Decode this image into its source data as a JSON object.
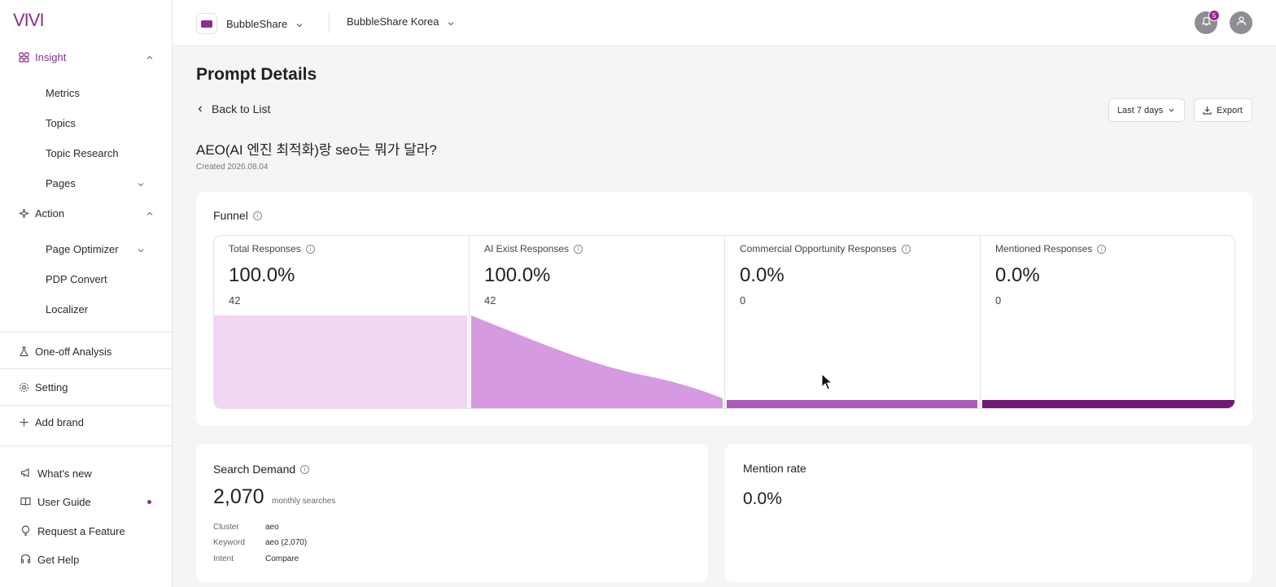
{
  "sidebar": {
    "logo": "VIVI",
    "insight": {
      "label": "Insight",
      "items": [
        "Metrics",
        "Topics",
        "Topic Research",
        "Pages"
      ]
    },
    "action": {
      "label": "Action",
      "items": [
        "Page Optimizer",
        "PDP Convert",
        "Localizer"
      ]
    },
    "one_off": "One-off Analysis",
    "setting": "Setting",
    "add_brand": "Add brand",
    "footer": [
      "What's new",
      "User Guide",
      "Request a Feature",
      "Get Help"
    ]
  },
  "header": {
    "brand": "BubbleShare",
    "region": "BubbleShare Korea",
    "notification_count": "5"
  },
  "main": {
    "page_title": "Prompt Details",
    "back_label": "Back to List",
    "range_label": "Last 7 days",
    "export_label": "Export",
    "prompt_title": "AEO(AI 엔진 최적화)랑 seo는 뭐가 달라?",
    "created": "Created 2026.08.04"
  },
  "funnel": {
    "title": "Funnel",
    "stages": [
      {
        "label": "Total Responses",
        "percent": "100.0%",
        "count": "42",
        "value": 100
      },
      {
        "label": "AI Exist Responses",
        "percent": "100.0%",
        "count": "42",
        "value": 100
      },
      {
        "label": "Commercial Opportunity Responses",
        "percent": "0.0%",
        "count": "0",
        "value": 0
      },
      {
        "label": "Mentioned Responses",
        "percent": "0.0%",
        "count": "0",
        "value": 0
      }
    ],
    "colors": [
      "#f1d5f3",
      "#d69ae0",
      "#ab5cb8",
      "#6e1a74"
    ]
  },
  "search_demand": {
    "title": "Search Demand",
    "value": "2,070",
    "unit": "monthly searches",
    "rows": [
      {
        "key": "Cluster",
        "value": "aeo"
      },
      {
        "key": "Keyword",
        "value": "aeo (2,070)"
      },
      {
        "key": "Intent",
        "value": "Compare"
      }
    ]
  },
  "mention_rate": {
    "title": "Mention rate",
    "value": "0.0%"
  }
}
